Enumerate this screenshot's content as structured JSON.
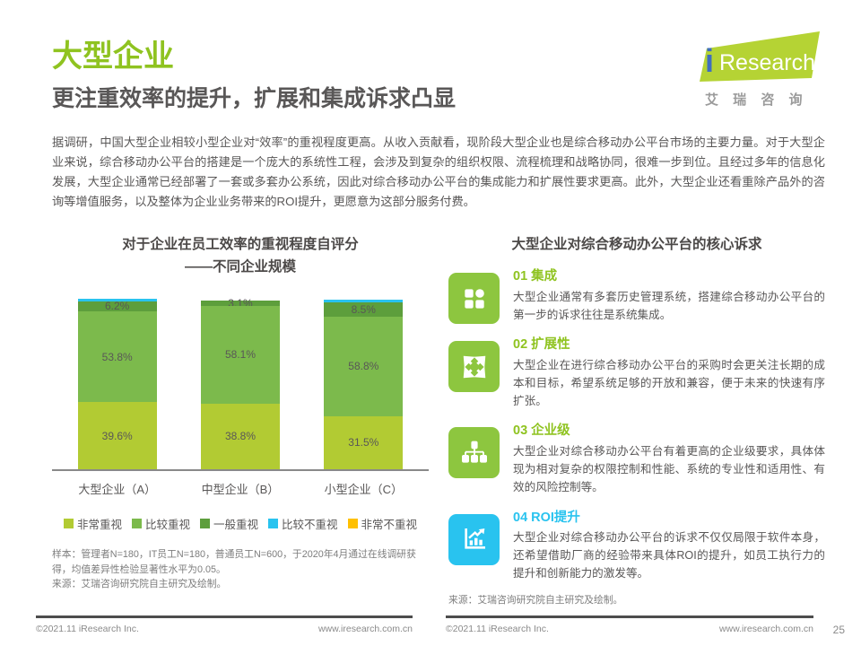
{
  "page": {
    "title": "大型企业",
    "subtitle": "更注重效率的提升，扩展和集成诉求凸显",
    "intro": "据调研，中国大型企业相较小型企业对“效率”的重视程度更高。从收入贡献看，现阶段大型企业也是综合移动办公平台市场的主要力量。对于大型企业来说，综合移动办公平台的搭建是一个庞大的系统性工程，会涉及到复杂的组织权限、流程梳理和战略协同，很难一步到位。且经过多年的信息化发展，大型企业通常已经部署了一套或多套办公系统，因此对综合移动办公平台的集成能力和扩展性要求更高。此外，大型企业还看重除产品外的咨询等增值服务，以及整体为企业业务带来的ROI提升，更愿意为这部分服务付费。"
  },
  "brand": {
    "logo_i": "i",
    "logo_text": "Research",
    "logo_cn": "艾 瑞 咨 询",
    "green": "#b5d334",
    "blue": "#3f6ebf"
  },
  "chart_data": {
    "type": "stacked-bar-100",
    "title": "对于企业在员工效率的重视程度自评分",
    "subtitle": "——不同企业规模",
    "categories": [
      "大型企业（A）",
      "中型企业（B）",
      "小型企业（C）"
    ],
    "unit": "%",
    "ylim": [
      0,
      100
    ],
    "legend_position": "bottom",
    "series": [
      {
        "name": "非常重视",
        "color": "#b2cb33",
        "show_label": true,
        "values": [
          39.6,
          38.8,
          31.5
        ]
      },
      {
        "name": "比较重视",
        "color": "#7cba4c",
        "show_label": true,
        "values": [
          53.8,
          58.1,
          58.8
        ]
      },
      {
        "name": "一般重视",
        "color": "#5d9e3c",
        "show_label": true,
        "values": [
          6.2,
          3.1,
          8.5
        ]
      },
      {
        "name": "比较不重视",
        "color": "#29c3ef",
        "show_label": false,
        "values": [
          0.4,
          0,
          1.2
        ]
      },
      {
        "name": "非常不重视",
        "color": "#ffc000",
        "show_label": false,
        "values": [
          0,
          0,
          0
        ]
      }
    ],
    "notes": {
      "sample": "样本：管理者N=180，IT员工N=180，普通员工N=600，于2020年4月通过在线调研获得，均值差异性检验显著性水平为0.05。",
      "source": "来源：艾瑞咨询研究院自主研究及绘制。"
    }
  },
  "demands": {
    "title": "大型企业对综合移动办公平台的核心诉求",
    "items": [
      {
        "label": "01 集成",
        "icon": "integration-grid-icon",
        "color": "#8fc320",
        "body": "大型企业通常有多套历史管理系统，搭建综合移动办公平台的第一步的诉求往往是系统集成。"
      },
      {
        "label": "02 扩展性",
        "icon": "expand-arrows-icon",
        "color": "#8fc320",
        "body": "大型企业在进行综合移动办公平台的采购时会更关注长期的成本和目标，希望系统足够的开放和兼容，便于未来的快速有序扩张。"
      },
      {
        "label": "03 企业级",
        "icon": "org-hierarchy-icon",
        "color": "#8fc320",
        "body": "大型企业对综合移动办公平台有着更高的企业级要求，具体体现为相对复杂的权限控制和性能、系统的专业性和适用性、有效的风险控制等。"
      },
      {
        "label": "04 ROI提升",
        "icon": "roi-chart-icon",
        "color": "#29c3ef",
        "body": "大型企业对综合移动办公平台的诉求不仅仅局限于软件本身，还希望借助厂商的经验带来具体ROI的提升，如员工执行力的提升和创新能力的激发等。"
      }
    ],
    "source": "来源：艾瑞咨询研究院自主研究及绘制。"
  },
  "footer": {
    "copyright": "©2021.11 iResearch Inc.",
    "website": "www.iresearch.com.cn",
    "page": "25"
  },
  "colors": {
    "accent_green": "#8fc320",
    "accent_cyan": "#29c3ef",
    "text_dark": "#595757",
    "text_gray": "#7d7d7d"
  }
}
